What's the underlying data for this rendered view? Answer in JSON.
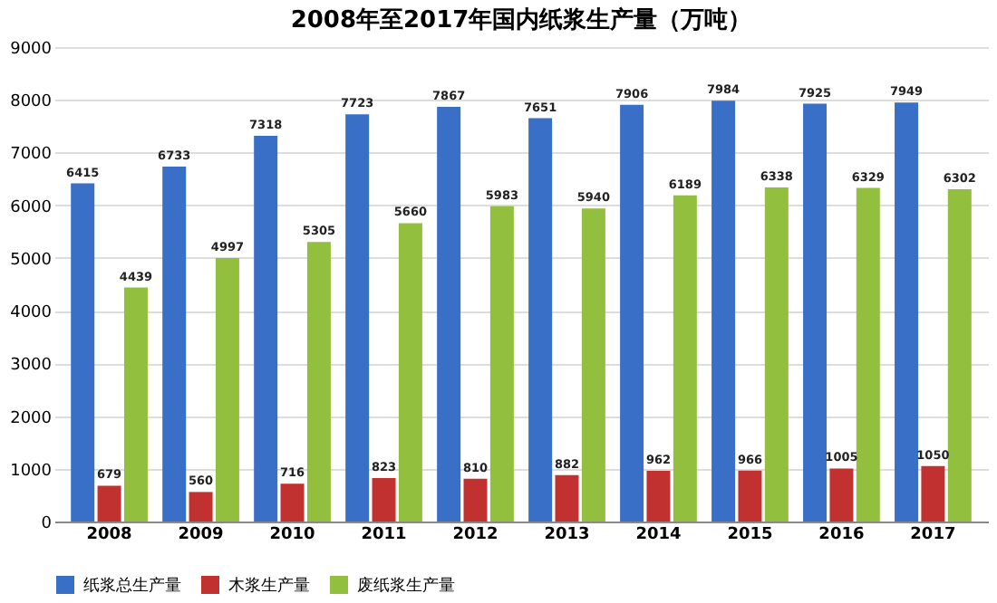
{
  "chart_data": {
    "type": "bar",
    "title": "2008年至2017年国内纸浆生产量（万吨）",
    "categories": [
      "2008",
      "2009",
      "2010",
      "2011",
      "2012",
      "2013",
      "2014",
      "2015",
      "2016",
      "2017"
    ],
    "series": [
      {
        "name": "纸浆总生产量",
        "color": "#3a6fc8",
        "values": [
          6415,
          6733,
          7318,
          7723,
          7867,
          7651,
          7906,
          7984,
          7925,
          7949
        ]
      },
      {
        "name": "木浆生产量",
        "color": "#c0312f",
        "values": [
          679,
          560,
          716,
          823,
          810,
          882,
          962,
          966,
          1005,
          1050
        ]
      },
      {
        "name": "废纸浆生产量",
        "color": "#93bf3f",
        "values": [
          4439,
          4997,
          5305,
          5660,
          5983,
          5940,
          6189,
          6338,
          6329,
          6302
        ]
      }
    ],
    "ylim": [
      0,
      9000
    ],
    "yticks": [
      0,
      1000,
      2000,
      3000,
      4000,
      5000,
      6000,
      7000,
      8000,
      9000
    ],
    "grid": "y",
    "legend": "bottom",
    "data_labels": true
  }
}
